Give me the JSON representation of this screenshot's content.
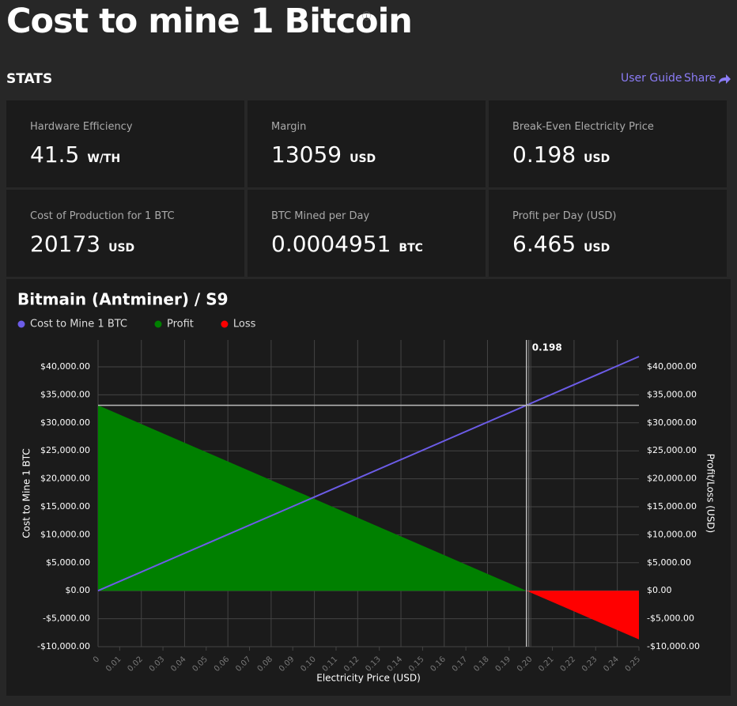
{
  "header": {
    "title": "Cost to mine 1 Bitcoin",
    "section": "STATS",
    "links": [
      "User Guide",
      "Share"
    ]
  },
  "stats": [
    {
      "label": "Hardware Efficiency",
      "value": 41.5,
      "unit": "W/TH"
    },
    {
      "label": "Margin",
      "value": 13059,
      "unit": "USD"
    },
    {
      "label": "Break-Even Electricity Price",
      "value": 0.198,
      "unit": "USD"
    },
    {
      "label": "Cost of Production for 1 BTC",
      "value": 20173,
      "unit": "USD"
    },
    {
      "label": "BTC Mined per Day",
      "value": 0.0004951,
      "unit": "BTC"
    },
    {
      "label": "Profit per Day (USD)",
      "value": 6.465,
      "unit": "USD"
    }
  ],
  "chart_data": {
    "type": "line",
    "title": "Bitmain (Antminer) / S9",
    "x_label": "Electricity Price (USD)",
    "y_label": "Cost to Mine 1 BTC",
    "y2_label": "Profit/Loss (USD)",
    "series": [
      {
        "name": "Cost to Mine 1 BTC",
        "color": "#6c5ce7",
        "kind": "line",
        "x": [
          0,
          0.25
        ],
        "values": [
          0,
          41836
        ]
      },
      {
        "name": "Profit",
        "color": "#008000",
        "kind": "area",
        "axis": "y2",
        "x": [
          0,
          0.198
        ],
        "values": [
          33134,
          0
        ]
      },
      {
        "name": "Loss",
        "color": "#ff0000",
        "kind": "area",
        "axis": "y2",
        "x": [
          0.198,
          0.25
        ],
        "values": [
          0,
          -8702
        ]
      }
    ],
    "crosshair": {
      "x": 0.198,
      "y": 33134
    },
    "xlim": [
      0,
      0.25
    ],
    "ylim": [
      -10000,
      44800
    ],
    "y2lim": [
      -10000,
      44800
    ],
    "xticks": [
      0,
      0.01,
      0.02,
      0.03,
      0.04,
      0.05,
      0.06,
      0.07,
      0.08,
      0.09,
      {
        "value": 0.1,
        "label": "0.10"
      },
      0.11,
      0.12,
      0.13,
      0.14,
      0.15,
      0.16,
      0.17,
      0.18,
      0.19,
      {
        "value": 0.2,
        "label": "0.20"
      },
      0.21,
      0.22,
      0.23,
      0.24,
      0.25
    ],
    "yticks": [
      {
        "value": -10000,
        "label": "-$10,000.00"
      },
      {
        "value": -5000,
        "label": "-$5,000.00"
      },
      {
        "value": 0,
        "label": "$0.00"
      },
      {
        "value": 5000,
        "label": "$5,000.00"
      },
      {
        "value": 10000,
        "label": "$10,000.00"
      },
      {
        "value": 15000,
        "label": "$15,000.00"
      },
      {
        "value": 20000,
        "label": "$20,000.00"
      },
      {
        "value": 25000,
        "label": "$25,000.00"
      },
      {
        "value": 30000,
        "label": "$30,000.00"
      },
      {
        "value": 35000,
        "label": "$35,000.00"
      },
      {
        "value": 40000,
        "label": "$40,000.00"
      }
    ],
    "y2ticks": [
      {
        "value": -10000,
        "label": "-$10,000.00"
      },
      {
        "value": -5000,
        "label": "-$5,000.00"
      },
      {
        "value": 0,
        "label": "$0.00"
      },
      {
        "value": 5000,
        "label": "$5,000.00"
      },
      {
        "value": 10000,
        "label": "$10,000.00"
      },
      {
        "value": 15000,
        "label": "$15,000.00"
      },
      {
        "value": 20000,
        "label": "$20,000.00"
      },
      {
        "value": 25000,
        "label": "$25,000.00"
      },
      {
        "value": 30000,
        "label": "$30,000.00"
      },
      {
        "value": 35000,
        "label": "$35,000.00"
      },
      {
        "value": 40000,
        "label": "$40,000.00"
      }
    ],
    "grid": true
  }
}
